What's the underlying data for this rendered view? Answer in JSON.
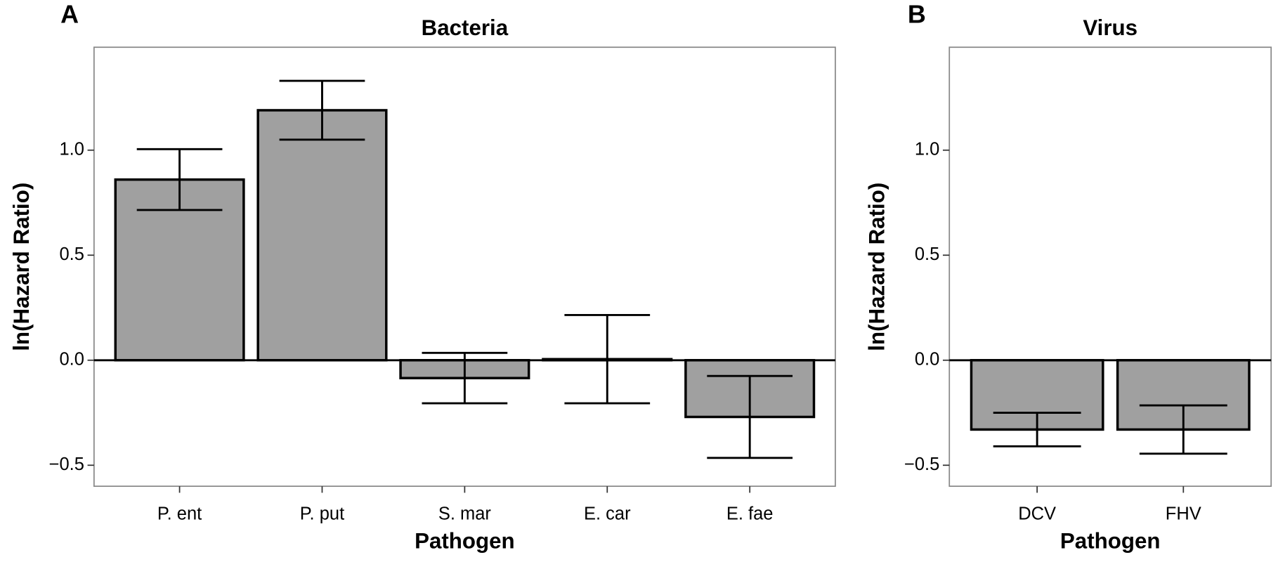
{
  "chart_data": [
    {
      "type": "bar",
      "panel_label": "A",
      "title": "Bacteria",
      "x_label": "Pathogen",
      "y_label": "ln(Hazard Ratio)",
      "categories": [
        "P. ent",
        "P. put",
        "S. mar",
        "E. car",
        "E. fae"
      ],
      "values": [
        0.86,
        1.19,
        -0.085,
        0.005,
        -0.27
      ],
      "errors": [
        0.145,
        0.14,
        0.12,
        0.21,
        0.195
      ],
      "color": "#a0a0a0",
      "ylim": [
        -0.6,
        1.49
      ],
      "yticks": [
        {
          "value": -0.5,
          "label": "−0.5"
        },
        {
          "value": 0,
          "label": "0.0"
        },
        {
          "value": 0.5,
          "label": "0.5"
        },
        {
          "value": 1,
          "label": "1.0"
        }
      ]
    },
    {
      "type": "bar",
      "panel_label": "B",
      "title": "Virus",
      "x_label": "Pathogen",
      "y_label": "ln(Hazard Ratio)",
      "categories": [
        "DCV",
        "FHV"
      ],
      "values": [
        -0.33,
        -0.33
      ],
      "errors": [
        0.08,
        0.115
      ],
      "color": "#a0a0a0",
      "ylim": [
        -0.6,
        1.49
      ],
      "yticks": [
        {
          "value": -0.5,
          "label": "−0.5"
        },
        {
          "value": 0,
          "label": "0.0"
        },
        {
          "value": 0.5,
          "label": "0.5"
        },
        {
          "value": 1,
          "label": "1.0"
        }
      ]
    }
  ]
}
